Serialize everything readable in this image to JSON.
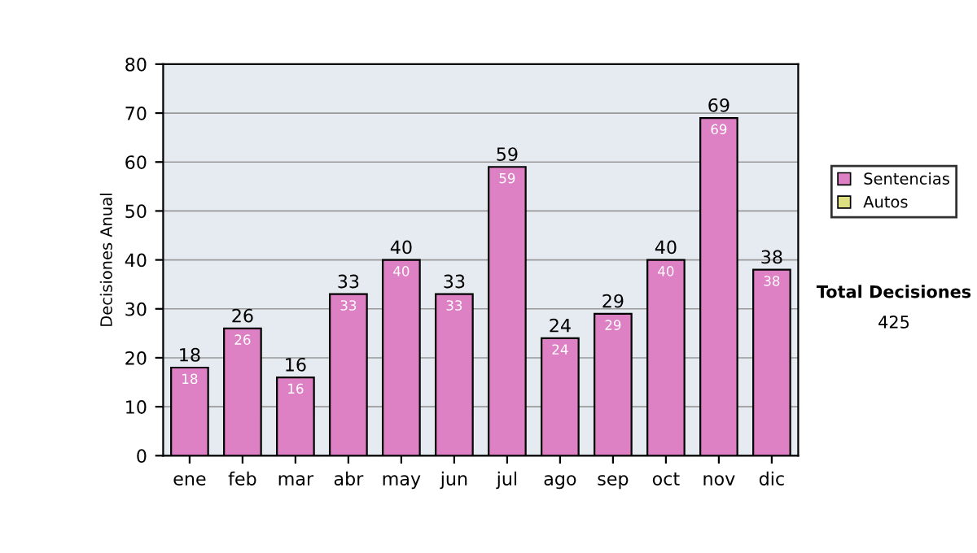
{
  "chart_data": {
    "type": "bar",
    "ylabel": "Decisiones Anual",
    "categories": [
      "ene",
      "feb",
      "mar",
      "abr",
      "may",
      "jun",
      "jul",
      "ago",
      "sep",
      "oct",
      "nov",
      "dic"
    ],
    "series": [
      {
        "name": "Sentencias",
        "color": "#dd80c4",
        "values": [
          18,
          26,
          16,
          33,
          40,
          33,
          59,
          24,
          29,
          40,
          69,
          38
        ],
        "value_labels": [
          "18",
          "26",
          "16",
          "33",
          "40",
          "33",
          "59",
          "24",
          "29",
          "40",
          "69",
          "38"
        ]
      },
      {
        "name": "Autos",
        "color": "#dde080",
        "values": [
          null,
          null,
          null,
          null,
          null,
          null,
          null,
          null,
          null,
          null,
          null,
          null
        ]
      }
    ],
    "stacked": true,
    "totals": [
      "18",
      "26",
      "16",
      "33",
      "40",
      "33",
      "59",
      "24",
      "29",
      "40",
      "69",
      "38"
    ],
    "ylim": [
      0,
      80
    ],
    "yticks": [
      0,
      10,
      20,
      30,
      40,
      50,
      60,
      70,
      80
    ],
    "grid": "y",
    "legend": "right",
    "annotations": [
      "Total Decisiones",
      "425"
    ]
  }
}
